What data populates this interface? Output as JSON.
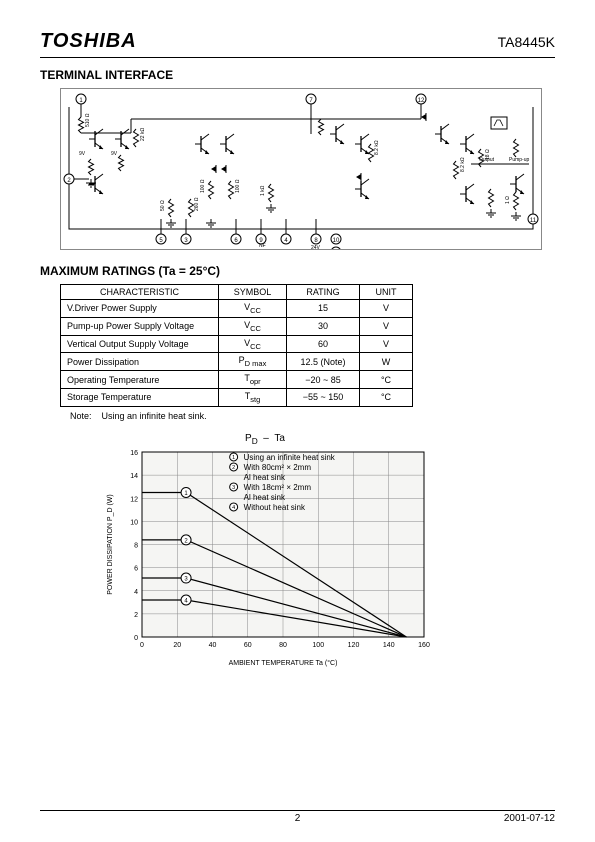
{
  "header": {
    "logo": "TOSHIBA",
    "part_number": "TA8445K"
  },
  "section1": {
    "heading": "TERMINAL INTERFACE",
    "pins": [
      "1",
      "2",
      "3",
      "4",
      "5",
      "6",
      "7",
      "8",
      "9",
      "10",
      "11",
      "12"
    ],
    "labels": {
      "r_510": "510 Ω",
      "r_22k": "22 kΩ",
      "r_100": "100 Ω",
      "r_260": "260 Ω",
      "r_50": "50 Ω",
      "r_1k": "1 kΩ",
      "r_8_2k": "8.2 kΩ",
      "r_18": "18 Ω",
      "r_1": "1 Ω",
      "v_9v": "9V",
      "v_24v": "24V",
      "nf": "NF",
      "output": "Output",
      "pumpup": "Pump-up"
    }
  },
  "section2": {
    "heading": "MAXIMUM RATINGS (Ta = 25°C)",
    "columns": [
      "CHARACTERISTIC",
      "SYMBOL",
      "RATING",
      "UNIT"
    ],
    "rows": [
      [
        "V.Driver Power Supply",
        "V_CC",
        "15",
        "V"
      ],
      [
        "Pump-up Power Supply Voltage",
        "V_CC",
        "30",
        "V"
      ],
      [
        "Vertical Output Supply Voltage",
        "V_CC",
        "60",
        "V"
      ],
      [
        "Power Dissipation",
        "P_D max",
        "12.5 (Note)",
        "W"
      ],
      [
        "Operating Temperature",
        "T_opr",
        "−20 ~ 85",
        "°C"
      ],
      [
        "Storage Temperature",
        "T_stg",
        "−55 ~ 150",
        "°C"
      ]
    ],
    "note_label": "Note:",
    "note_text": "Using an infinite heat sink."
  },
  "chart": {
    "title": "P_D  –  Ta",
    "xlabel": "AMBIENT TEMPERATURE   Ta   (°C)",
    "ylabel": "POWER DISSIPATION   P_D   (W)",
    "xlim": [
      0,
      160
    ],
    "ylim": [
      0,
      16
    ],
    "xtick_step": 20,
    "ytick_step": 2,
    "grid_color": "#888888",
    "background": "#f5f5f3",
    "axis_color": "#000000",
    "line_color": "#000000",
    "line_width": 1.2,
    "marker_radius": 5,
    "series": [
      {
        "id": "1",
        "marker_x": 25,
        "marker_y": 12.5,
        "points": [
          [
            0,
            12.5
          ],
          [
            25,
            12.5
          ],
          [
            150,
            0
          ]
        ]
      },
      {
        "id": "2",
        "marker_x": 25,
        "marker_y": 8.4,
        "points": [
          [
            0,
            8.4
          ],
          [
            25,
            8.4
          ],
          [
            150,
            0
          ]
        ]
      },
      {
        "id": "3",
        "marker_x": 25,
        "marker_y": 5.1,
        "points": [
          [
            0,
            5.1
          ],
          [
            25,
            5.1
          ],
          [
            150,
            0
          ]
        ]
      },
      {
        "id": "4",
        "marker_x": 25,
        "marker_y": 3.2,
        "points": [
          [
            0,
            3.2
          ],
          [
            25,
            3.2
          ],
          [
            150,
            0
          ]
        ]
      }
    ],
    "legend": [
      {
        "id": "1",
        "text": "Using an infinite heat sink"
      },
      {
        "id": "2",
        "text": "With 80cm² × 2mm"
      },
      {
        "id": "",
        "text": "Al heat sink"
      },
      {
        "id": "3",
        "text": "With 18cm² × 2mm"
      },
      {
        "id": "",
        "text": "Al heat sink"
      },
      {
        "id": "4",
        "text": "Without heat sink"
      }
    ],
    "legend_font_size": 8
  },
  "footer": {
    "page": "2",
    "date": "2001-07-12"
  }
}
